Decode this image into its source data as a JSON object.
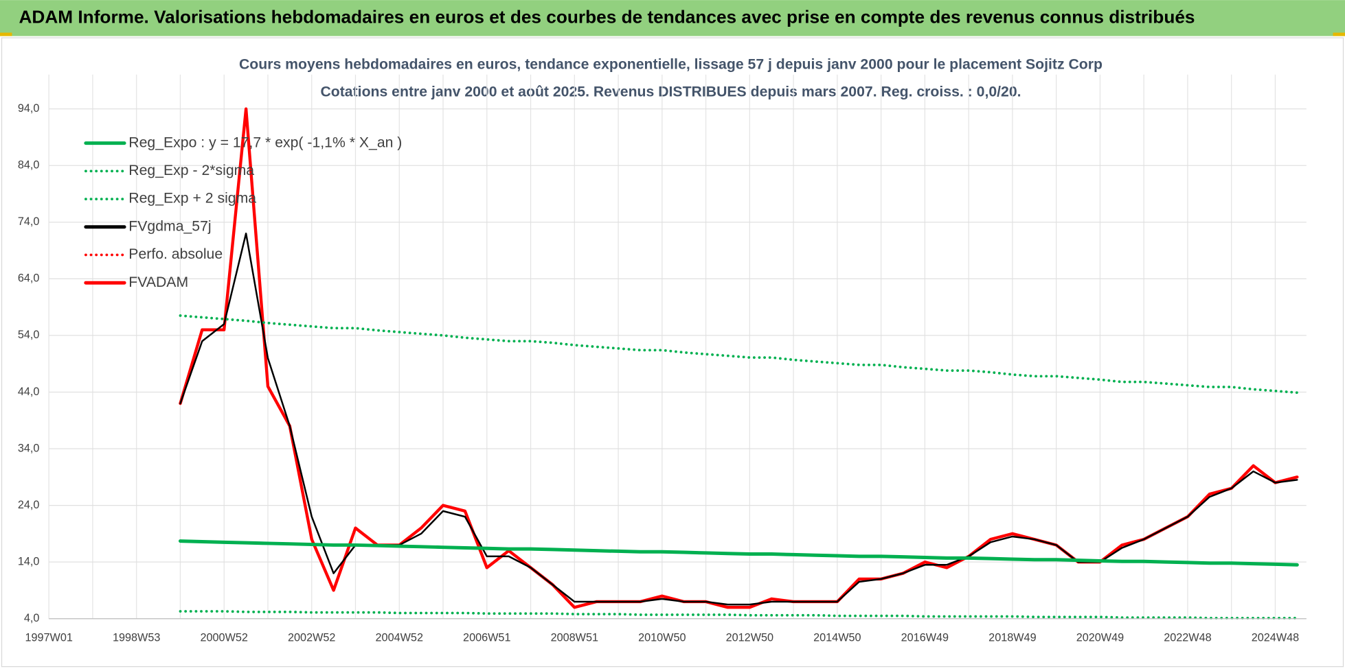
{
  "page_title": "ADAM Informe. Valorisations hebdomadaires en euros et des courbes de tendances avec prise en compte des revenus connus distribués",
  "chart_data": {
    "type": "line",
    "title": "Cours moyens hebdomadaires en euros, tendance exponentielle, lissage 57 j depuis janv 2000 pour le placement Sojitz Corp",
    "subtitle": "Cotations entre janv 2000 et août 2025.  Revenus DISTRIBUES depuis mars 2007. Reg. croiss. : 0,0/20.",
    "categories": [
      "1997W01",
      null,
      null,
      null,
      "1998W53",
      null,
      null,
      null,
      "2000W52",
      null,
      null,
      null,
      "2002W52",
      null,
      null,
      null,
      "2004W52",
      null,
      null,
      null,
      "2006W51",
      null,
      null,
      null,
      "2008W51",
      null,
      null,
      null,
      "2010W50",
      null,
      null,
      null,
      "2012W50",
      null,
      null,
      null,
      "2014W50",
      null,
      null,
      null,
      "2016W49",
      null,
      null,
      null,
      "2018W49",
      null,
      null,
      null,
      "2020W49",
      null,
      null,
      null,
      "2022W48",
      null,
      null,
      null,
      "2024W48",
      null
    ],
    "ylim": [
      4,
      94
    ],
    "yticks": [
      {
        "value": 4,
        "label": "4,0"
      },
      {
        "value": 14,
        "label": "14,0"
      },
      {
        "value": 24,
        "label": "24,0"
      },
      {
        "value": 34,
        "label": "34,0"
      },
      {
        "value": 44,
        "label": "44,0"
      },
      {
        "value": 54,
        "label": "54,0"
      },
      {
        "value": 64,
        "label": "64,0"
      },
      {
        "value": 74,
        "label": "74,0"
      },
      {
        "value": 84,
        "label": "84,0"
      },
      {
        "value": 94,
        "label": "94,0"
      }
    ],
    "grid": true,
    "legend": "top-left",
    "series": [
      {
        "name": "Reg_Expo : y = 17,7 * exp( -1,1% *  X_an )",
        "color": "#00b050",
        "dotted": false,
        "values": [
          null,
          null,
          null,
          null,
          null,
          null,
          17.7,
          17.6,
          17.5,
          17.4,
          17.3,
          17.2,
          17.1,
          17.0,
          17.0,
          16.9,
          16.8,
          16.7,
          16.6,
          16.5,
          16.4,
          16.3,
          16.3,
          16.2,
          16.1,
          16.0,
          15.9,
          15.8,
          15.8,
          15.7,
          15.6,
          15.5,
          15.4,
          15.4,
          15.3,
          15.2,
          15.1,
          15.0,
          15.0,
          14.9,
          14.8,
          14.7,
          14.7,
          14.6,
          14.5,
          14.4,
          14.4,
          14.3,
          14.2,
          14.1,
          14.1,
          14.0,
          13.9,
          13.8,
          13.8,
          13.7,
          13.6,
          13.5
        ]
      },
      {
        "name": "Reg_Exp - 2*sigma",
        "color": "#00b050",
        "dotted": true,
        "values": [
          null,
          null,
          null,
          null,
          null,
          null,
          5.3,
          5.3,
          5.3,
          5.2,
          5.2,
          5.2,
          5.1,
          5.1,
          5.1,
          5.1,
          5.0,
          5.0,
          5.0,
          5.0,
          4.9,
          4.9,
          4.9,
          4.9,
          4.8,
          4.8,
          4.8,
          4.7,
          4.7,
          4.7,
          4.7,
          4.7,
          4.6,
          4.6,
          4.6,
          4.6,
          4.5,
          4.5,
          4.5,
          4.5,
          4.4,
          4.4,
          4.4,
          4.4,
          4.4,
          4.3,
          4.3,
          4.3,
          4.3,
          4.2,
          4.2,
          4.2,
          4.2,
          4.1,
          4.1,
          4.1,
          4.1,
          4.1
        ]
      },
      {
        "name": "Reg_Exp + 2 sigma",
        "color": "#00b050",
        "dotted": true,
        "values": [
          null,
          null,
          null,
          null,
          null,
          null,
          57.5,
          57.2,
          56.9,
          56.6,
          56.2,
          55.9,
          55.6,
          55.3,
          55.3,
          54.9,
          54.6,
          54.3,
          54.0,
          53.6,
          53.3,
          53.0,
          53.0,
          52.7,
          52.3,
          52.0,
          51.7,
          51.4,
          51.4,
          51.0,
          50.7,
          50.4,
          50.1,
          50.1,
          49.7,
          49.4,
          49.1,
          48.8,
          48.8,
          48.4,
          48.1,
          47.8,
          47.8,
          47.5,
          47.1,
          46.8,
          46.8,
          46.5,
          46.2,
          45.8,
          45.8,
          45.5,
          45.2,
          44.9,
          44.9,
          44.5,
          44.2,
          43.9
        ]
      },
      {
        "name": "FVgdma_57j",
        "color": "#000000",
        "dotted": false,
        "values": [
          null,
          null,
          null,
          null,
          null,
          null,
          42,
          53,
          56,
          72,
          50,
          38,
          22,
          12,
          17,
          17,
          17,
          19,
          23,
          22,
          15,
          15,
          13,
          10,
          7,
          7,
          7,
          7,
          7.5,
          7,
          7,
          6.5,
          6.5,
          7,
          7,
          7,
          7,
          10.5,
          11,
          12,
          13.5,
          13.5,
          15,
          17.5,
          18.5,
          18,
          17,
          14,
          14,
          16.5,
          18,
          20,
          22,
          25.5,
          27,
          30,
          28,
          28.5
        ]
      },
      {
        "name": "Perfo. absolue",
        "color": "#ff0000",
        "dotted": true,
        "values": [
          null,
          null,
          null,
          null,
          null,
          null,
          null,
          null,
          null,
          null,
          null,
          null,
          null,
          null,
          null,
          null,
          null,
          null,
          null,
          null,
          null,
          null,
          null,
          null,
          null,
          null,
          null,
          null,
          null,
          null,
          null,
          null,
          null,
          null,
          null,
          null,
          null,
          null,
          null,
          null,
          null,
          null,
          null,
          null,
          null,
          null,
          null,
          null,
          null,
          null,
          null,
          null,
          null,
          null,
          null,
          null,
          null,
          null
        ]
      },
      {
        "name": "FVADAM",
        "color": "#ff0000",
        "dotted": false,
        "values": [
          null,
          null,
          null,
          null,
          null,
          null,
          42,
          55,
          55,
          94,
          45,
          38,
          18,
          9,
          20,
          17,
          17,
          20,
          24,
          23,
          13,
          16,
          13,
          10,
          6,
          7,
          7,
          7,
          8,
          7,
          7,
          6,
          6,
          7.5,
          7,
          7,
          7,
          11,
          11,
          12,
          14,
          13,
          15,
          18,
          19,
          18,
          17,
          14,
          14,
          17,
          18,
          20,
          22,
          26,
          27,
          31,
          28,
          29
        ]
      }
    ]
  }
}
